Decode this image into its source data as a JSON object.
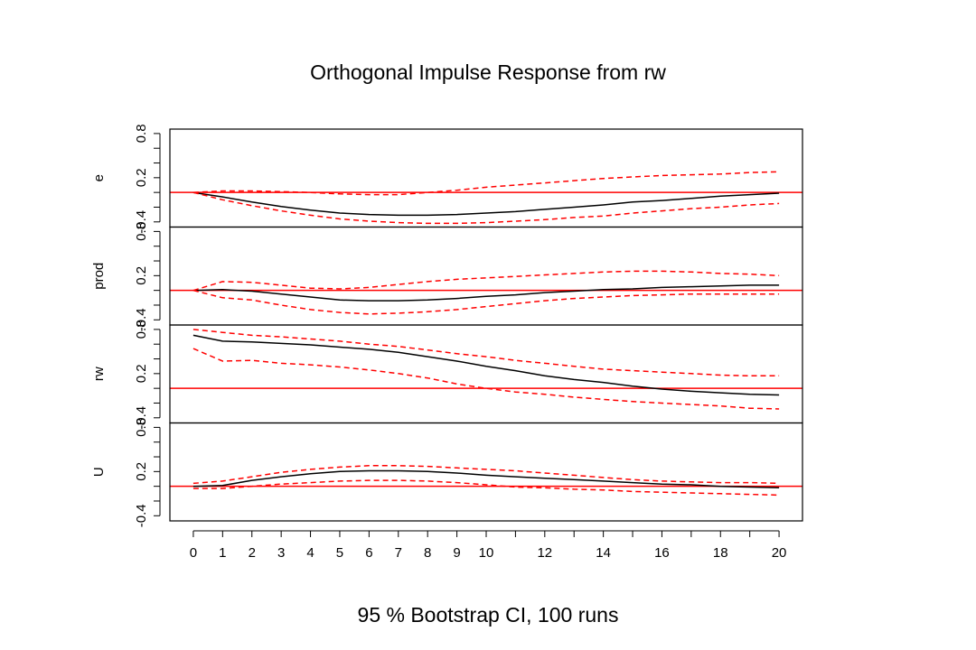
{
  "chart_data": [
    {
      "type": "line",
      "ylabel": "e",
      "x": [
        0,
        1,
        2,
        3,
        4,
        5,
        6,
        7,
        8,
        9,
        10,
        11,
        12,
        13,
        14,
        15,
        16,
        17,
        18,
        19,
        20
      ],
      "ylim": [
        -0.47,
        0.86
      ],
      "yticks": [
        -0.4,
        0.2,
        0.8
      ],
      "yminor_ticks": [
        -0.2,
        0,
        0.4,
        0.6
      ],
      "hline": 0,
      "hline_color": "#ff0000",
      "series": [
        {
          "color": "#000000",
          "dash": false,
          "values": [
            0,
            -0.06,
            -0.13,
            -0.19,
            -0.24,
            -0.28,
            -0.3,
            -0.31,
            -0.31,
            -0.3,
            -0.28,
            -0.26,
            -0.23,
            -0.2,
            -0.17,
            -0.13,
            -0.11,
            -0.08,
            -0.05,
            -0.03,
            -0.01
          ]
        },
        {
          "color": "#ff0000",
          "dash": true,
          "values": [
            0,
            0.02,
            0.02,
            0.01,
            0,
            -0.02,
            -0.03,
            -0.03,
            0,
            0.03,
            0.07,
            0.1,
            0.13,
            0.16,
            0.19,
            0.21,
            0.23,
            0.24,
            0.25,
            0.27,
            0.28
          ]
        },
        {
          "color": "#ff0000",
          "dash": true,
          "values": [
            0,
            -0.1,
            -0.18,
            -0.25,
            -0.31,
            -0.36,
            -0.39,
            -0.41,
            -0.42,
            -0.42,
            -0.41,
            -0.39,
            -0.37,
            -0.34,
            -0.32,
            -0.28,
            -0.25,
            -0.22,
            -0.2,
            -0.17,
            -0.15
          ]
        }
      ]
    },
    {
      "type": "line",
      "ylabel": "prod",
      "x": [
        0,
        1,
        2,
        3,
        4,
        5,
        6,
        7,
        8,
        9,
        10,
        11,
        12,
        13,
        14,
        15,
        16,
        17,
        18,
        19,
        20
      ],
      "ylim": [
        -0.47,
        0.86
      ],
      "yticks": [
        -0.4,
        0.2,
        0.8
      ],
      "yminor_ticks": [
        -0.2,
        0,
        0.4,
        0.6
      ],
      "hline": 0,
      "hline_color": "#ff0000",
      "series": [
        {
          "color": "#000000",
          "dash": false,
          "values": [
            0,
            0.01,
            -0.01,
            -0.05,
            -0.09,
            -0.13,
            -0.14,
            -0.14,
            -0.13,
            -0.11,
            -0.08,
            -0.06,
            -0.03,
            -0.01,
            0.01,
            0.02,
            0.04,
            0.05,
            0.06,
            0.07,
            0.07
          ]
        },
        {
          "color": "#ff0000",
          "dash": true,
          "values": [
            0,
            0.12,
            0.11,
            0.07,
            0.03,
            0.02,
            0.04,
            0.08,
            0.12,
            0.15,
            0.17,
            0.19,
            0.21,
            0.23,
            0.25,
            0.26,
            0.26,
            0.25,
            0.23,
            0.22,
            0.2
          ]
        },
        {
          "color": "#ff0000",
          "dash": true,
          "values": [
            0,
            -0.1,
            -0.13,
            -0.2,
            -0.26,
            -0.3,
            -0.32,
            -0.31,
            -0.29,
            -0.26,
            -0.22,
            -0.18,
            -0.14,
            -0.11,
            -0.09,
            -0.07,
            -0.06,
            -0.05,
            -0.05,
            -0.05,
            -0.05
          ]
        }
      ]
    },
    {
      "type": "line",
      "ylabel": "rw",
      "x": [
        0,
        1,
        2,
        3,
        4,
        5,
        6,
        7,
        8,
        9,
        10,
        11,
        12,
        13,
        14,
        15,
        16,
        17,
        18,
        19,
        20
      ],
      "ylim": [
        -0.47,
        0.86
      ],
      "yticks": [
        -0.4,
        0.2,
        0.8
      ],
      "yminor_ticks": [
        -0.2,
        0,
        0.4,
        0.6
      ],
      "hline": 0,
      "hline_color": "#ff0000",
      "series": [
        {
          "color": "#000000",
          "dash": false,
          "values": [
            0.72,
            0.64,
            0.63,
            0.61,
            0.59,
            0.56,
            0.53,
            0.49,
            0.43,
            0.37,
            0.3,
            0.24,
            0.17,
            0.12,
            0.08,
            0.03,
            -0.01,
            -0.04,
            -0.06,
            -0.08,
            -0.09
          ]
        },
        {
          "color": "#ff0000",
          "dash": true,
          "values": [
            0.8,
            0.76,
            0.72,
            0.7,
            0.67,
            0.64,
            0.6,
            0.57,
            0.52,
            0.47,
            0.43,
            0.38,
            0.34,
            0.3,
            0.26,
            0.24,
            0.22,
            0.2,
            0.18,
            0.17,
            0.17
          ]
        },
        {
          "color": "#ff0000",
          "dash": true,
          "values": [
            0.54,
            0.37,
            0.38,
            0.34,
            0.32,
            0.29,
            0.25,
            0.2,
            0.14,
            0.06,
            0,
            -0.05,
            -0.08,
            -0.12,
            -0.15,
            -0.18,
            -0.2,
            -0.22,
            -0.24,
            -0.27,
            -0.28
          ]
        }
      ]
    },
    {
      "type": "line",
      "ylabel": "U",
      "x": [
        0,
        1,
        2,
        3,
        4,
        5,
        6,
        7,
        8,
        9,
        10,
        11,
        12,
        13,
        14,
        15,
        16,
        17,
        18,
        19,
        20
      ],
      "ylim": [
        -0.47,
        0.86
      ],
      "yticks": [
        -0.4,
        0.2,
        0.8
      ],
      "yminor_ticks": [
        -0.2,
        0,
        0.4,
        0.6
      ],
      "hline": 0,
      "hline_color": "#ff0000",
      "xlim": [
        -0.8,
        20.8
      ],
      "xticks": [
        0,
        1,
        2,
        3,
        4,
        5,
        6,
        7,
        8,
        9,
        10,
        12,
        14,
        16,
        18,
        20
      ],
      "xminor_ticks": [
        11,
        13,
        15,
        17,
        19
      ],
      "title": "Orthogonal Impulse Response from rw",
      "caption": "95 % Bootstrap CI,  100 runs",
      "series": [
        {
          "color": "#000000",
          "dash": false,
          "values": [
            0,
            0.01,
            0.08,
            0.13,
            0.17,
            0.2,
            0.21,
            0.21,
            0.2,
            0.18,
            0.15,
            0.13,
            0.11,
            0.09,
            0.07,
            0.05,
            0.03,
            0.02,
            0,
            -0.01,
            -0.02
          ]
        },
        {
          "color": "#ff0000",
          "dash": true,
          "values": [
            0.04,
            0.07,
            0.13,
            0.19,
            0.23,
            0.26,
            0.28,
            0.28,
            0.27,
            0.25,
            0.23,
            0.21,
            0.18,
            0.15,
            0.12,
            0.09,
            0.07,
            0.06,
            0.05,
            0.05,
            0.04
          ]
        },
        {
          "color": "#ff0000",
          "dash": true,
          "values": [
            -0.03,
            -0.03,
            0,
            0.03,
            0.05,
            0.07,
            0.08,
            0.08,
            0.07,
            0.05,
            0.02,
            -0.01,
            -0.02,
            -0.04,
            -0.05,
            -0.07,
            -0.08,
            -0.09,
            -0.1,
            -0.11,
            -0.12
          ]
        }
      ]
    }
  ]
}
